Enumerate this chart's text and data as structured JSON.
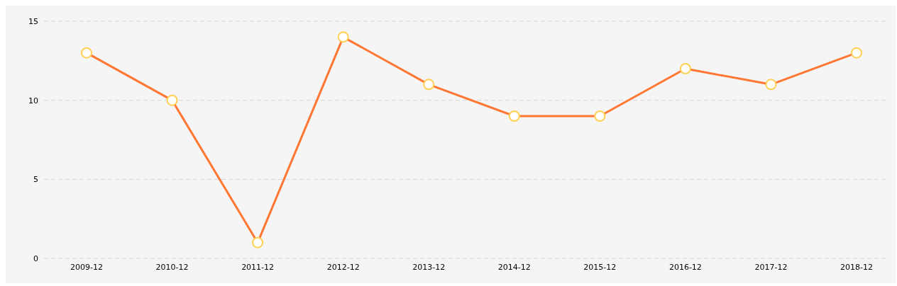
{
  "chart_data": {
    "type": "line",
    "categories": [
      "2009-12",
      "2010-12",
      "2011-12",
      "2012-12",
      "2013-12",
      "2014-12",
      "2015-12",
      "2016-12",
      "2017-12",
      "2018-12"
    ],
    "series": [
      {
        "color": "#ff7733",
        "values": [
          13,
          10,
          1,
          14,
          11,
          9,
          9,
          12,
          11,
          13
        ]
      }
    ],
    "ylim": [
      0,
      15
    ],
    "yticks": [
      0,
      5,
      10,
      15
    ],
    "grid": "y",
    "marker": "circle",
    "line_style": "solid"
  }
}
